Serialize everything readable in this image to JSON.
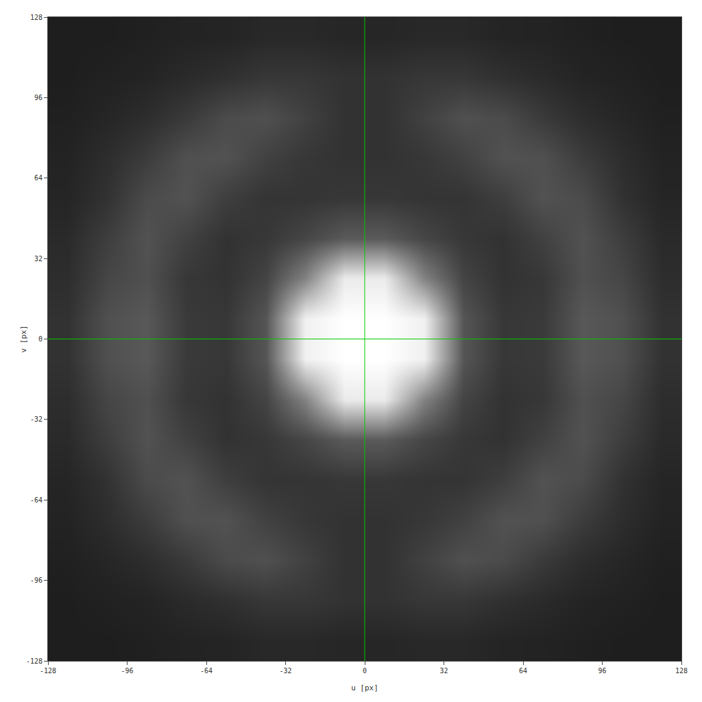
{
  "chart_data": {
    "type": "heatmap",
    "xlabel": "u [px]",
    "ylabel": "v [px]",
    "x": [
      -120,
      -104,
      -88,
      -72,
      -56,
      -40,
      -24,
      -8,
      8,
      24,
      40,
      56,
      72,
      88,
      104,
      120
    ],
    "y": [
      -120,
      -104,
      -88,
      -72,
      -56,
      -40,
      -24,
      -8,
      8,
      24,
      40,
      56,
      72,
      88,
      104,
      120
    ],
    "cells": [
      [
        30,
        30,
        32,
        35,
        36,
        40,
        40,
        38,
        38,
        40,
        40,
        36,
        35,
        32,
        30,
        30
      ],
      [
        30,
        33,
        36,
        42,
        48,
        55,
        55,
        50,
        50,
        55,
        55,
        48,
        42,
        36,
        33,
        30
      ],
      [
        32,
        38,
        45,
        58,
        75,
        80,
        65,
        50,
        50,
        65,
        80,
        75,
        58,
        45,
        38,
        32
      ],
      [
        35,
        45,
        60,
        80,
        82,
        65,
        55,
        50,
        50,
        55,
        65,
        82,
        80,
        60,
        45,
        35
      ],
      [
        37,
        50,
        75,
        82,
        62,
        52,
        52,
        55,
        55,
        52,
        52,
        62,
        82,
        75,
        50,
        37
      ],
      [
        42,
        62,
        82,
        65,
        50,
        55,
        70,
        90,
        90,
        70,
        55,
        50,
        65,
        82,
        62,
        42
      ],
      [
        45,
        70,
        80,
        55,
        50,
        68,
        130,
        235,
        235,
        130,
        68,
        50,
        55,
        80,
        70,
        45
      ],
      [
        50,
        80,
        88,
        58,
        55,
        85,
        240,
        255,
        255,
        240,
        85,
        55,
        58,
        88,
        80,
        50
      ],
      [
        50,
        80,
        88,
        58,
        55,
        85,
        240,
        255,
        255,
        240,
        85,
        55,
        58,
        88,
        80,
        50
      ],
      [
        45,
        70,
        80,
        55,
        50,
        68,
        130,
        235,
        235,
        130,
        68,
        50,
        55,
        80,
        70,
        45
      ],
      [
        42,
        62,
        82,
        65,
        50,
        55,
        70,
        90,
        90,
        70,
        55,
        50,
        65,
        82,
        62,
        42
      ],
      [
        37,
        50,
        75,
        82,
        62,
        52,
        52,
        55,
        55,
        52,
        52,
        62,
        82,
        75,
        50,
        37
      ],
      [
        35,
        45,
        60,
        80,
        82,
        65,
        55,
        50,
        50,
        55,
        65,
        82,
        80,
        60,
        45,
        35
      ],
      [
        32,
        38,
        45,
        58,
        75,
        80,
        65,
        50,
        50,
        65,
        80,
        75,
        58,
        45,
        38,
        32
      ],
      [
        30,
        33,
        36,
        42,
        48,
        55,
        55,
        50,
        50,
        55,
        55,
        48,
        42,
        36,
        33,
        30
      ],
      [
        30,
        30,
        32,
        35,
        36,
        40,
        40,
        38,
        38,
        40,
        40,
        36,
        35,
        32,
        30,
        30
      ]
    ],
    "zlim": [
      0,
      255
    ],
    "xlim": [
      -128,
      128
    ],
    "ylim": [
      -128,
      128
    ],
    "xticks": [
      -128,
      -96,
      -64,
      -32,
      0,
      32,
      64,
      96,
      128
    ],
    "yticks": [
      -128,
      -96,
      -64,
      -32,
      0,
      32,
      64,
      96,
      128
    ],
    "grid": false,
    "crosshair": {
      "u": 0,
      "v": 0,
      "color": "#00cc00"
    }
  }
}
